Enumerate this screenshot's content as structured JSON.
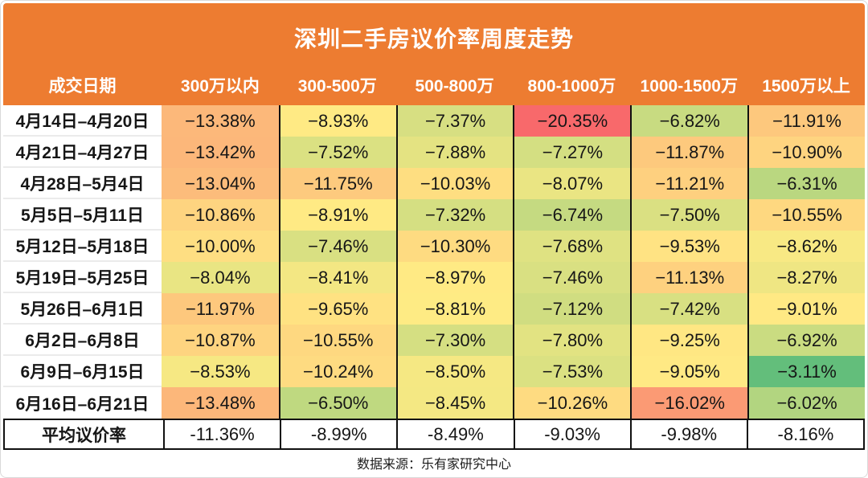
{
  "chart_data": {
    "type": "heatmap",
    "title": "深圳二手房议价率周度走势",
    "unit": "%",
    "columns": [
      "成交日期",
      "300万以内",
      "300-500万",
      "500-800万",
      "800-1000万",
      "1000-1500万",
      "1500万以上"
    ],
    "row_labels": [
      "4月14日–4月20日",
      "4月21日–4月27日",
      "4月28日–5月4日",
      "5月5日–5月11日",
      "5月12日–5月18日",
      "5月19日–5月25日",
      "5月26日–6月1日",
      "6月2日–6月8日",
      "6月9日–6月15日",
      "6月16日–6月21日"
    ],
    "values": [
      [
        -13.38,
        -8.93,
        -7.37,
        -20.35,
        -6.82,
        -11.91
      ],
      [
        -13.42,
        -7.52,
        -7.88,
        -7.27,
        -11.87,
        -10.9
      ],
      [
        -13.04,
        -11.75,
        -10.03,
        -8.07,
        -11.21,
        -6.31
      ],
      [
        -10.86,
        -8.91,
        -7.32,
        -6.74,
        -7.5,
        -10.55
      ],
      [
        -10.0,
        -7.46,
        -10.3,
        -7.68,
        -9.53,
        -8.62
      ],
      [
        -8.04,
        -8.41,
        -8.97,
        -7.46,
        -11.13,
        -8.27
      ],
      [
        -11.97,
        -9.65,
        -8.81,
        -7.12,
        -7.42,
        -9.01
      ],
      [
        -10.87,
        -10.55,
        -7.3,
        -7.8,
        -9.25,
        -6.92
      ],
      [
        -8.53,
        -10.24,
        -8.5,
        -7.53,
        -9.05,
        -3.11
      ],
      [
        -13.48,
        -6.5,
        -8.45,
        -10.26,
        -16.02,
        -6.02
      ]
    ],
    "average_row": {
      "label": "平均议价率",
      "values": [
        -11.36,
        -8.99,
        -8.49,
        -9.03,
        -9.98,
        -8.16
      ]
    },
    "color_scale": {
      "min_value": -20.35,
      "max_value": -3.11,
      "min_color": "#F8696B",
      "mid_color": "#FFEB84",
      "max_color": "#63BE7B"
    },
    "legend_position": "none",
    "source": "数据来源：乐有家研究中心"
  },
  "colors": {
    "header_bg": "#ED7C31",
    "header_text": "#FFFFFF",
    "cell_text": "#161616",
    "divider": "#111111"
  }
}
